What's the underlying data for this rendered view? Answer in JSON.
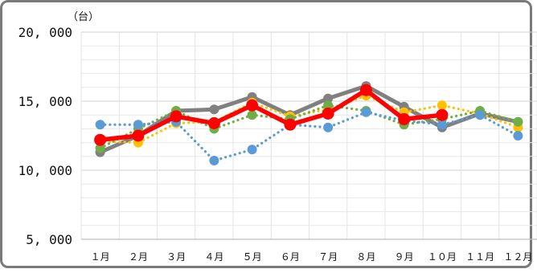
{
  "chart_data": {
    "type": "line",
    "unit_label": "（台）",
    "categories": [
      "１月",
      "２月",
      "３月",
      "４月",
      "５月",
      "６月",
      "７月",
      "８月",
      "９月",
      "１０月",
      "１１月",
      "１２月"
    ],
    "y_ticks": [
      {
        "value": 5000,
        "label": "5, 000"
      },
      {
        "value": 10000,
        "label": "10, 000"
      },
      {
        "value": 15000,
        "label": "15, 000"
      },
      {
        "value": 20000,
        "label": "20, 000"
      }
    ],
    "ylim": [
      5000,
      20000
    ],
    "grid": true,
    "series": [
      {
        "color": "#808080",
        "style": "solid",
        "values": [
          11300,
          12500,
          14300,
          14400,
          15300,
          14000,
          15200,
          16100,
          14600,
          13100,
          14100,
          13500
        ]
      },
      {
        "color": "#ffc000",
        "style": "dotted",
        "values": [
          12100,
          12000,
          13400,
          13500,
          14900,
          13900,
          14400,
          15400,
          14200,
          14700,
          14100,
          13100
        ]
      },
      {
        "color": "#70ad47",
        "style": "dotted",
        "values": [
          11600,
          13000,
          14300,
          13000,
          14000,
          13700,
          14700,
          14300,
          13300,
          13700,
          14300,
          13500
        ]
      },
      {
        "color": "#5b9bd5",
        "style": "dotted",
        "values": [
          13300,
          13300,
          13500,
          10700,
          11500,
          13300,
          13100,
          14200,
          13600,
          13300,
          14000,
          12500
        ]
      },
      {
        "color": "#ff0000",
        "style": "solid-bold",
        "values": [
          12200,
          12500,
          13900,
          13400,
          14700,
          13300,
          14100,
          15800,
          13700,
          14000,
          null,
          null
        ]
      }
    ]
  }
}
